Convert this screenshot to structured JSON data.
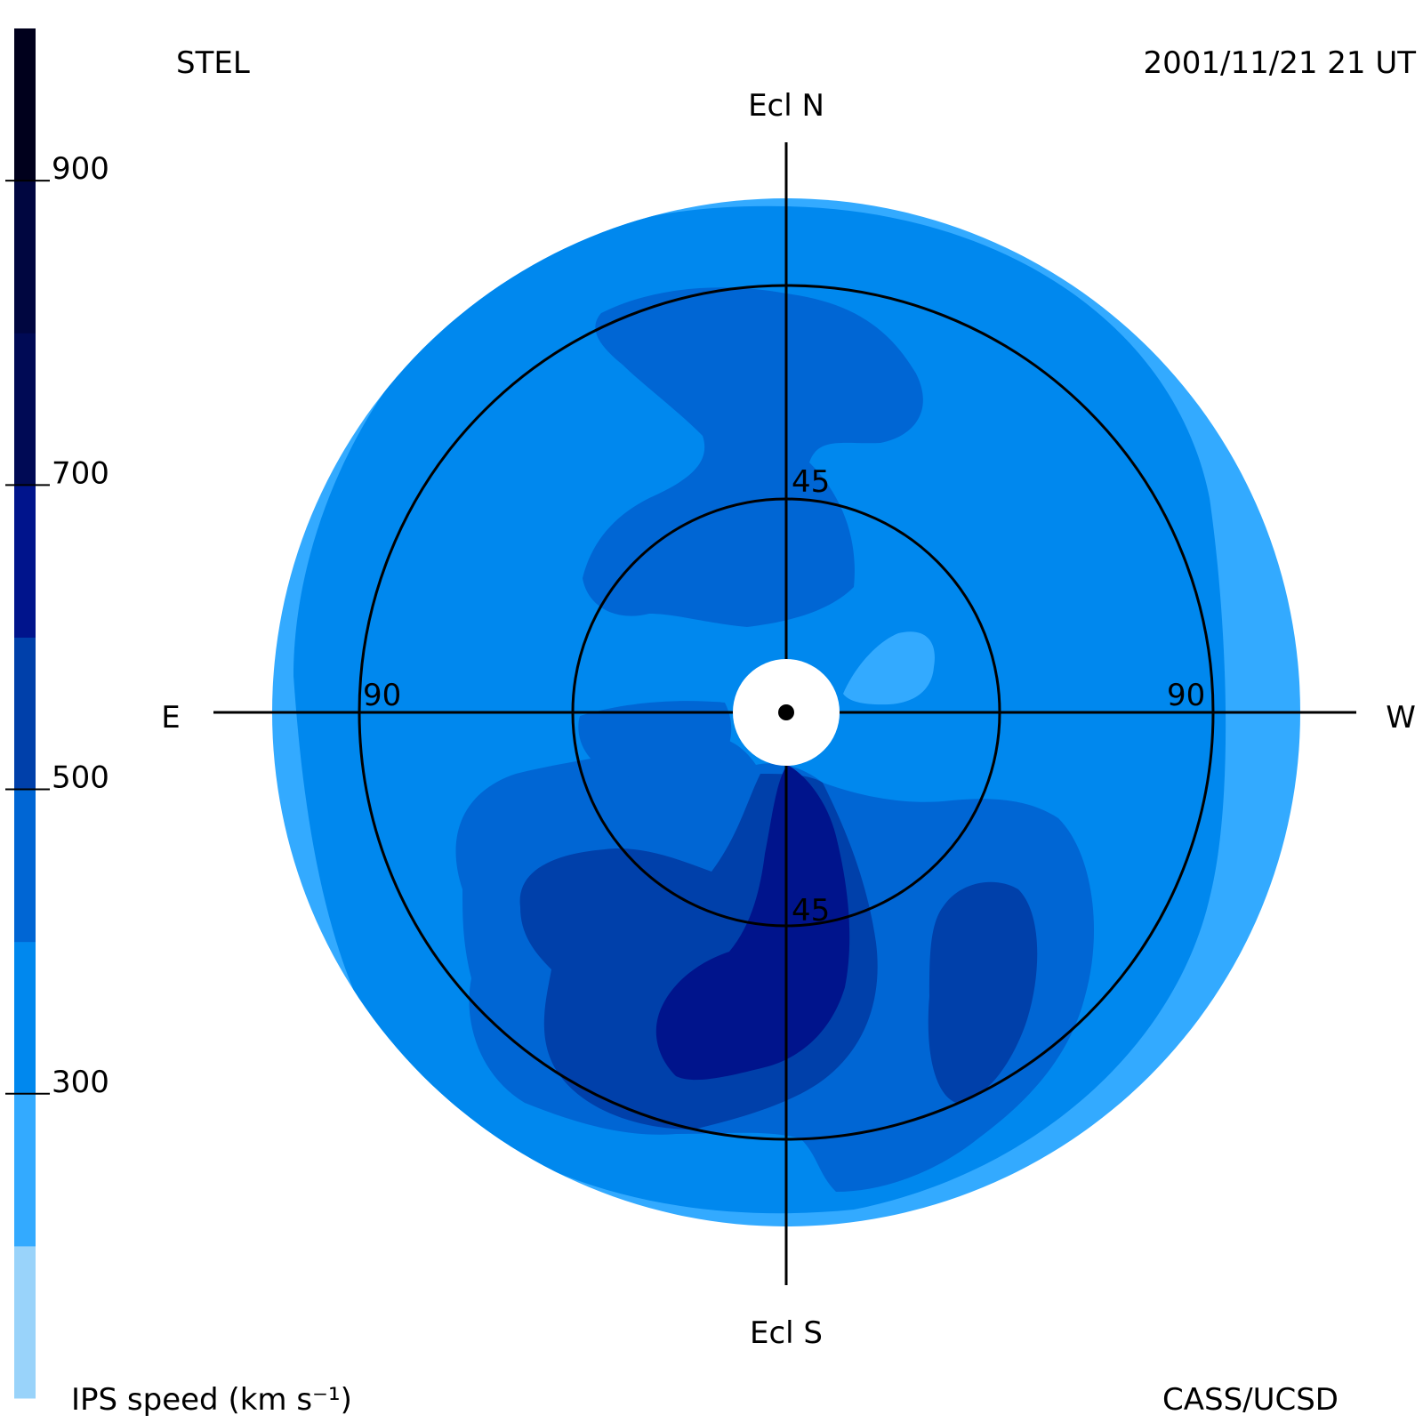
{
  "header": {
    "observatory": "STEL",
    "timestamp": "2001/11/21 21 UT"
  },
  "footer": {
    "colorbar_label": "IPS speed (km s⁻¹)",
    "credit": "CASS/UCSD"
  },
  "chart_data": {
    "type": "heatmap",
    "projection": "polar sky map (elongation from Sun)",
    "directions": {
      "north": "Ecl N",
      "south": "Ecl S",
      "east": "E",
      "west": "W"
    },
    "elongation_rings": [
      {
        "value": 45,
        "label": "45"
      },
      {
        "value": 90,
        "label": "90"
      }
    ],
    "colorbar": {
      "label": "IPS speed (km s⁻¹)",
      "range": [
        100,
        1000
      ],
      "ticks": [
        {
          "value": 300,
          "label": "300"
        },
        {
          "value": 500,
          "label": "500"
        },
        {
          "value": 700,
          "label": "700"
        },
        {
          "value": 900,
          "label": "900"
        }
      ],
      "bands": [
        {
          "from": 100,
          "to": 200,
          "color": "#99d3fa"
        },
        {
          "from": 200,
          "to": 300,
          "color": "#33aaff"
        },
        {
          "from": 300,
          "to": 400,
          "color": "#0088ee"
        },
        {
          "from": 400,
          "to": 500,
          "color": "#0066d4"
        },
        {
          "from": 500,
          "to": 600,
          "color": "#0040aa"
        },
        {
          "from": 600,
          "to": 700,
          "color": "#00148c"
        },
        {
          "from": 700,
          "to": 800,
          "color": "#000a55"
        },
        {
          "from": 800,
          "to": 900,
          "color": "#000640"
        },
        {
          "from": 900,
          "to": 1000,
          "color": "#00001c"
        }
      ]
    },
    "colors": {
      "outer_rim": "#33aaff",
      "background_field": "#0088ee",
      "level_400_500": "#0066d4",
      "level_500_600": "#0040aa",
      "level_600_700": "#00148c",
      "sun_occulter": "#ffffff"
    }
  }
}
